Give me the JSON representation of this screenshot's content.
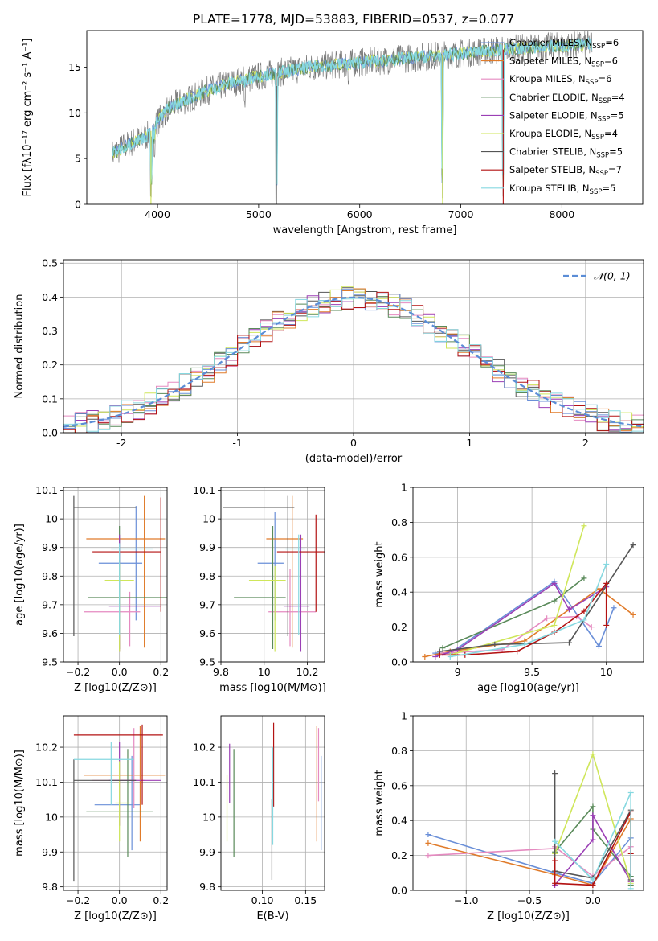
{
  "title": "PLATE=1778, MJD=53883, FIBERID=0537, z=0.077",
  "colors": [
    "#6a8fd8",
    "#e07b2a",
    "#e58ac0",
    "#5a8a5a",
    "#9b3fb5",
    "#cfe65a",
    "#555555",
    "#b31212",
    "#86d8e0"
  ],
  "chart_data": [
    {
      "id": "spectrum",
      "type": "line",
      "xlabel": "wavelength [Angstrom, rest frame]",
      "ylabel": "Flux [fλ10⁻¹⁷ erg cm⁻² s⁻¹ A⁻¹]",
      "xlim": [
        3300,
        8800
      ],
      "ylim": [
        0,
        19
      ],
      "xticks": [
        4000,
        5000,
        6000,
        7000,
        8000
      ],
      "yticks": [
        0,
        5,
        10,
        15
      ],
      "legend_position": "right",
      "legend": [
        {
          "label": "Chabrier MILES",
          "sub": "SSP",
          "n": "=6"
        },
        {
          "label": "Salpeter MILES",
          "sub": "SSP",
          "n": "=6"
        },
        {
          "label": "Kroupa MILES",
          "sub": "SSP",
          "n": "=6"
        },
        {
          "label": "Chabrier ELODIE",
          "sub": "SSP",
          "n": "=4"
        },
        {
          "label": "Salpeter ELODIE",
          "sub": "SSP",
          "n": "=5"
        },
        {
          "label": "Kroupa ELODIE",
          "sub": "SSP",
          "n": "=4"
        },
        {
          "label": "Chabrier STELIB",
          "sub": "SSP",
          "n": "=5"
        },
        {
          "label": "Salpeter STELIB",
          "sub": "SSP",
          "n": "=7"
        },
        {
          "label": "Kroupa STELIB",
          "sub": "SSP",
          "n": "=5"
        }
      ],
      "continuum": [
        [
          3550,
          5.5
        ],
        [
          3700,
          6.5
        ],
        [
          3900,
          7.5
        ],
        [
          4100,
          10.5
        ],
        [
          4300,
          11.5
        ],
        [
          4500,
          12.5
        ],
        [
          4800,
          13.5
        ],
        [
          5000,
          14.0
        ],
        [
          5500,
          15.0
        ],
        [
          6000,
          15.5
        ],
        [
          6500,
          16.0
        ],
        [
          7000,
          16.5
        ],
        [
          7500,
          17.0
        ],
        [
          8000,
          17.3
        ],
        [
          8300,
          17.5
        ]
      ],
      "absorption_features": [
        [
          3935,
          0
        ],
        [
          3970,
          4.5
        ],
        [
          4102,
          8.5
        ],
        [
          4300,
          10
        ],
        [
          4862,
          10.5
        ],
        [
          5175,
          0
        ],
        [
          5890,
          13
        ],
        [
          6820,
          0
        ],
        [
          7420,
          0
        ]
      ]
    },
    {
      "id": "residuals",
      "type": "histogram",
      "xlabel": "(data-model)/error",
      "ylabel": "Normed distribution",
      "xlim": [
        -2.5,
        2.5
      ],
      "ylim": [
        0,
        0.51
      ],
      "xticks": [
        -2,
        -1,
        0,
        1,
        2
      ],
      "yticks": [
        0.0,
        0.1,
        0.2,
        0.3,
        0.4,
        0.5
      ],
      "legend": "𝒩(0, 1)",
      "legend_position": "upper right",
      "bin_width": 0.1,
      "reference_curve": "normal(0,1)"
    },
    {
      "id": "age_vs_Z",
      "type": "errorbar",
      "xlabel": "Z [log10(Z/Z⊙)]",
      "ylabel": "age  [log10(age/yr)]",
      "xlim": [
        -0.27,
        0.23
      ],
      "ylim": [
        9.5,
        10.11
      ],
      "xticks": [
        -0.2,
        0.0,
        0.2
      ],
      "xticklabels": [
        "−0.2",
        "0.0",
        "0.2"
      ],
      "yticks": [
        9.5,
        9.6,
        9.7,
        9.8,
        9.9,
        10.0,
        10.1
      ],
      "points": [
        {
          "x": 0.08,
          "xerr": [
            0.18,
            0.03
          ],
          "y": 9.845,
          "yerr": [
            0.2,
            0.2
          ]
        },
        {
          "x": 0.12,
          "xerr": [
            0.28,
            0.1
          ],
          "y": 9.93,
          "yerr": [
            0.38,
            0.15
          ]
        },
        {
          "x": 0.05,
          "xerr": [
            0.22,
            0.05
          ],
          "y": 9.675,
          "yerr": [
            0.12,
            0.07
          ]
        },
        {
          "x": 0.0,
          "xerr": [
            0.15,
            0.28
          ],
          "y": 9.725,
          "yerr": [
            0.18,
            0.25
          ]
        },
        {
          "x": 0.0,
          "xerr": [
            0.05,
            0.2
          ],
          "y": 9.695,
          "yerr": [
            0.16,
            0.25
          ]
        },
        {
          "x": 0.0,
          "xerr": [
            0.07,
            0.07
          ],
          "y": 9.785,
          "yerr": [
            0.25,
            0.06
          ]
        },
        {
          "x": -0.22,
          "xerr": [
            0.0,
            0.3
          ],
          "y": 10.04,
          "yerr": [
            0.45,
            0.04
          ]
        },
        {
          "x": 0.2,
          "xerr": [
            0.33,
            0.0
          ],
          "y": 9.885,
          "yerr": [
            0.21,
            0.19
          ]
        },
        {
          "x": 0.0,
          "xerr": [
            0.04,
            0.16
          ],
          "y": 9.895,
          "yerr": [
            0.3,
            0.02
          ]
        }
      ]
    },
    {
      "id": "age_vs_mass",
      "type": "errorbar",
      "xlabel": "mass [log10(M/M⊙)]",
      "ylabel": "",
      "xlim": [
        9.8,
        10.28
      ],
      "ylim": [
        9.5,
        10.11
      ],
      "xticks": [
        9.8,
        10.0,
        10.2
      ],
      "yticks": [
        9.5,
        9.6,
        9.7,
        9.8,
        9.9,
        10.0,
        10.1
      ],
      "points": [
        {
          "x": 10.05,
          "xerr": [
            0.08,
            0.04
          ],
          "y": 9.845,
          "yerr": [
            0.2,
            0.18
          ]
        },
        {
          "x": 10.13,
          "xerr": [
            0.12,
            0.05
          ],
          "y": 9.93,
          "yerr": [
            0.38,
            0.15
          ]
        },
        {
          "x": 10.12,
          "xerr": [
            0.1,
            0.12
          ],
          "y": 9.675,
          "yerr": [
            0.12,
            0.15
          ]
        },
        {
          "x": 10.04,
          "xerr": [
            0.18,
            0.06
          ],
          "y": 9.725,
          "yerr": [
            0.18,
            0.25
          ]
        },
        {
          "x": 10.17,
          "xerr": [
            0.08,
            0.04
          ],
          "y": 9.695,
          "yerr": [
            0.16,
            0.25
          ]
        },
        {
          "x": 10.05,
          "xerr": [
            0.12,
            0.05
          ],
          "y": 9.785,
          "yerr": [
            0.25,
            0.05
          ]
        },
        {
          "x": 10.11,
          "xerr": [
            0.3,
            0.03
          ],
          "y": 10.04,
          "yerr": [
            0.45,
            0.04
          ]
        },
        {
          "x": 10.24,
          "xerr": [
            0.18,
            0.04
          ],
          "y": 9.885,
          "yerr": [
            0.21,
            0.13
          ]
        },
        {
          "x": 10.16,
          "xerr": [
            0.06,
            0.03
          ],
          "y": 9.895,
          "yerr": [
            0.3,
            0.05
          ]
        }
      ]
    },
    {
      "id": "massweight_vs_age",
      "type": "line",
      "xlabel": "age  [log10(age/yr)]",
      "ylabel": "mass weight",
      "xlim": [
        8.7,
        10.25
      ],
      "ylim": [
        0,
        1.0
      ],
      "xticks": [
        9.0,
        9.5,
        10.0
      ],
      "yticks": [
        0.0,
        0.2,
        0.4,
        0.6,
        0.8,
        1.0
      ],
      "series": [
        {
          "x": [
            8.85,
            8.95,
            9.65,
            9.95,
            10.05
          ],
          "y": [
            0.05,
            0.05,
            0.46,
            0.09,
            0.31
          ]
        },
        {
          "x": [
            8.78,
            8.95,
            9.45,
            9.95,
            10.18
          ],
          "y": [
            0.03,
            0.06,
            0.12,
            0.42,
            0.27
          ]
        },
        {
          "x": [
            8.9,
            9.3,
            9.6,
            9.8,
            9.9
          ],
          "y": [
            0.05,
            0.07,
            0.25,
            0.26,
            0.2
          ]
        },
        {
          "x": [
            8.9,
            9.65,
            9.85
          ],
          "y": [
            0.08,
            0.35,
            0.48
          ]
        },
        {
          "x": [
            8.85,
            9.0,
            9.65,
            9.75,
            10.0
          ],
          "y": [
            0.03,
            0.07,
            0.45,
            0.3,
            0.43
          ]
        },
        {
          "x": [
            8.95,
            9.65,
            9.85
          ],
          "y": [
            0.04,
            0.21,
            0.78
          ]
        },
        {
          "x": [
            8.88,
            9.25,
            9.75,
            10.18
          ],
          "y": [
            0.06,
            0.1,
            0.11,
            0.67
          ]
        },
        {
          "x": [
            8.88,
            9.05,
            9.4,
            9.65,
            9.85,
            10.0,
            10.0
          ],
          "y": [
            0.04,
            0.04,
            0.06,
            0.17,
            0.29,
            0.45,
            0.21
          ]
        },
        {
          "x": [
            8.95,
            9.45,
            9.85,
            10.0
          ],
          "y": [
            0.03,
            0.1,
            0.24,
            0.56
          ]
        }
      ]
    },
    {
      "id": "mass_vs_Z",
      "type": "errorbar",
      "xlabel": "Z [log10(Z/Z⊙)]",
      "ylabel": "mass [log10(M/M⊙)]",
      "xlim": [
        -0.27,
        0.23
      ],
      "ylim": [
        9.79,
        10.29
      ],
      "xticks": [
        -0.2,
        0.0,
        0.2
      ],
      "xticklabels": [
        "−0.2",
        "0.0",
        "0.2"
      ],
      "yticks": [
        9.8,
        9.9,
        10.0,
        10.1,
        10.2
      ],
      "points": [
        {
          "x": 0.06,
          "xerr": [
            0.18,
            0.04
          ],
          "y": 10.035,
          "yerr": [
            0.13,
            0.14
          ]
        },
        {
          "x": 0.1,
          "xerr": [
            0.27,
            0.12
          ],
          "y": 10.12,
          "yerr": [
            0.19,
            0.14
          ]
        },
        {
          "x": 0.07,
          "xerr": [
            0.2,
            0.05
          ],
          "y": 10.105,
          "yerr": [
            0.08,
            0.15
          ]
        },
        {
          "x": 0.04,
          "xerr": [
            0.2,
            0.12
          ],
          "y": 10.015,
          "yerr": [
            0.13,
            0.18
          ]
        },
        {
          "x": 0.0,
          "xerr": [
            0.05,
            0.2
          ],
          "y": 10.105,
          "yerr": [
            0.13,
            0.11
          ]
        },
        {
          "x": 0.0,
          "xerr": [
            0.02,
            0.05
          ],
          "y": 10.04,
          "yerr": [
            0.11,
            0.12
          ]
        },
        {
          "x": -0.22,
          "xerr": [
            0.0,
            0.3
          ],
          "y": 10.105,
          "yerr": [
            0.29,
            0.06
          ]
        },
        {
          "x": 0.11,
          "xerr": [
            0.33,
            0.1
          ],
          "y": 10.235,
          "yerr": [
            0.2,
            0.03
          ]
        },
        {
          "x": -0.04,
          "xerr": [
            0.18,
            0.11
          ],
          "y": 10.165,
          "yerr": [
            0.13,
            0.05
          ]
        }
      ]
    },
    {
      "id": "mass_vs_EBV",
      "type": "errorbar",
      "xlabel": "E(B-V)",
      "ylabel": "",
      "xlim": [
        0.052,
        0.172
      ],
      "ylim": [
        9.79,
        10.29
      ],
      "xticks": [
        0.1,
        0.15
      ],
      "xticklabels": [
        "0.10",
        "0.15"
      ],
      "yticks": [
        9.8,
        9.9,
        10.0,
        10.1,
        10.2
      ],
      "points": [
        {
          "x": 0.168,
          "y": 10.035,
          "yerr": [
            0.13,
            0.14
          ]
        },
        {
          "x": 0.163,
          "y": 10.12,
          "yerr": [
            0.19,
            0.14
          ]
        },
        {
          "x": 0.165,
          "y": 10.105,
          "yerr": [
            0.06,
            0.15
          ]
        },
        {
          "x": 0.067,
          "y": 10.015,
          "yerr": [
            0.13,
            0.18
          ]
        },
        {
          "x": 0.062,
          "y": 10.1,
          "yerr": [
            0.06,
            0.11
          ]
        },
        {
          "x": 0.059,
          "y": 10.01,
          "yerr": [
            0.08,
            0.11
          ]
        },
        {
          "x": 0.111,
          "y": 9.93,
          "yerr": [
            0.11,
            0.12
          ]
        },
        {
          "x": 0.113,
          "y": 10.15,
          "yerr": [
            0.12,
            0.12
          ]
        },
        {
          "x": 0.112,
          "y": 10.02,
          "yerr": [
            0.1,
            0.18
          ]
        }
      ]
    },
    {
      "id": "massweight_vs_Z",
      "type": "line",
      "xlabel": "Z [log10(Z/Z⊙)]",
      "ylabel": "mass weight",
      "xlim": [
        -1.42,
        0.4
      ],
      "ylim": [
        0,
        1.0
      ],
      "xticks": [
        -1.0,
        -0.5,
        0.0
      ],
      "xticklabels": [
        "−1.0",
        "−0.5",
        "0.0"
      ],
      "yticks": [
        0.0,
        0.2,
        0.4,
        0.6,
        0.8,
        1.0
      ],
      "series": [
        {
          "x": [
            -1.3,
            -0.3,
            0.0,
            0.3,
            0.3
          ],
          "y": [
            0.32,
            0.1,
            0.04,
            0.3,
            0.05
          ]
        },
        {
          "x": [
            -1.3,
            -0.3,
            0.0,
            0.3,
            0.3
          ],
          "y": [
            0.27,
            0.09,
            0.03,
            0.41,
            0.05
          ]
        },
        {
          "x": [
            -1.3,
            -0.3,
            -0.3,
            0.0,
            0.3,
            0.3
          ],
          "y": [
            0.2,
            0.24,
            0.25,
            0.08,
            0.25,
            0.05
          ]
        },
        {
          "x": [
            -0.3,
            0.0,
            0.0,
            0.3,
            0.3
          ],
          "y": [
            0.22,
            0.48,
            0.35,
            0.08,
            0.03
          ]
        },
        {
          "x": [
            -0.3,
            0.0,
            0.0,
            0.3,
            0.3
          ],
          "y": [
            0.03,
            0.29,
            0.43,
            0.05,
            0.06
          ]
        },
        {
          "x": [
            -0.3,
            0.0,
            0.3
          ],
          "y": [
            0.21,
            0.78,
            0.04
          ]
        },
        {
          "x": [
            -0.3,
            -0.3,
            0.0,
            0.3,
            0.3
          ],
          "y": [
            0.67,
            0.11,
            0.07,
            0.46,
            0.06
          ]
        },
        {
          "x": [
            -0.3,
            -0.3,
            0.0,
            0.3,
            0.3
          ],
          "y": [
            0.17,
            0.04,
            0.03,
            0.45,
            0.21
          ]
        },
        {
          "x": [
            -0.3,
            0.0,
            0.3,
            0.3
          ],
          "y": [
            0.28,
            0.06,
            0.56,
            0.01
          ]
        }
      ]
    }
  ]
}
